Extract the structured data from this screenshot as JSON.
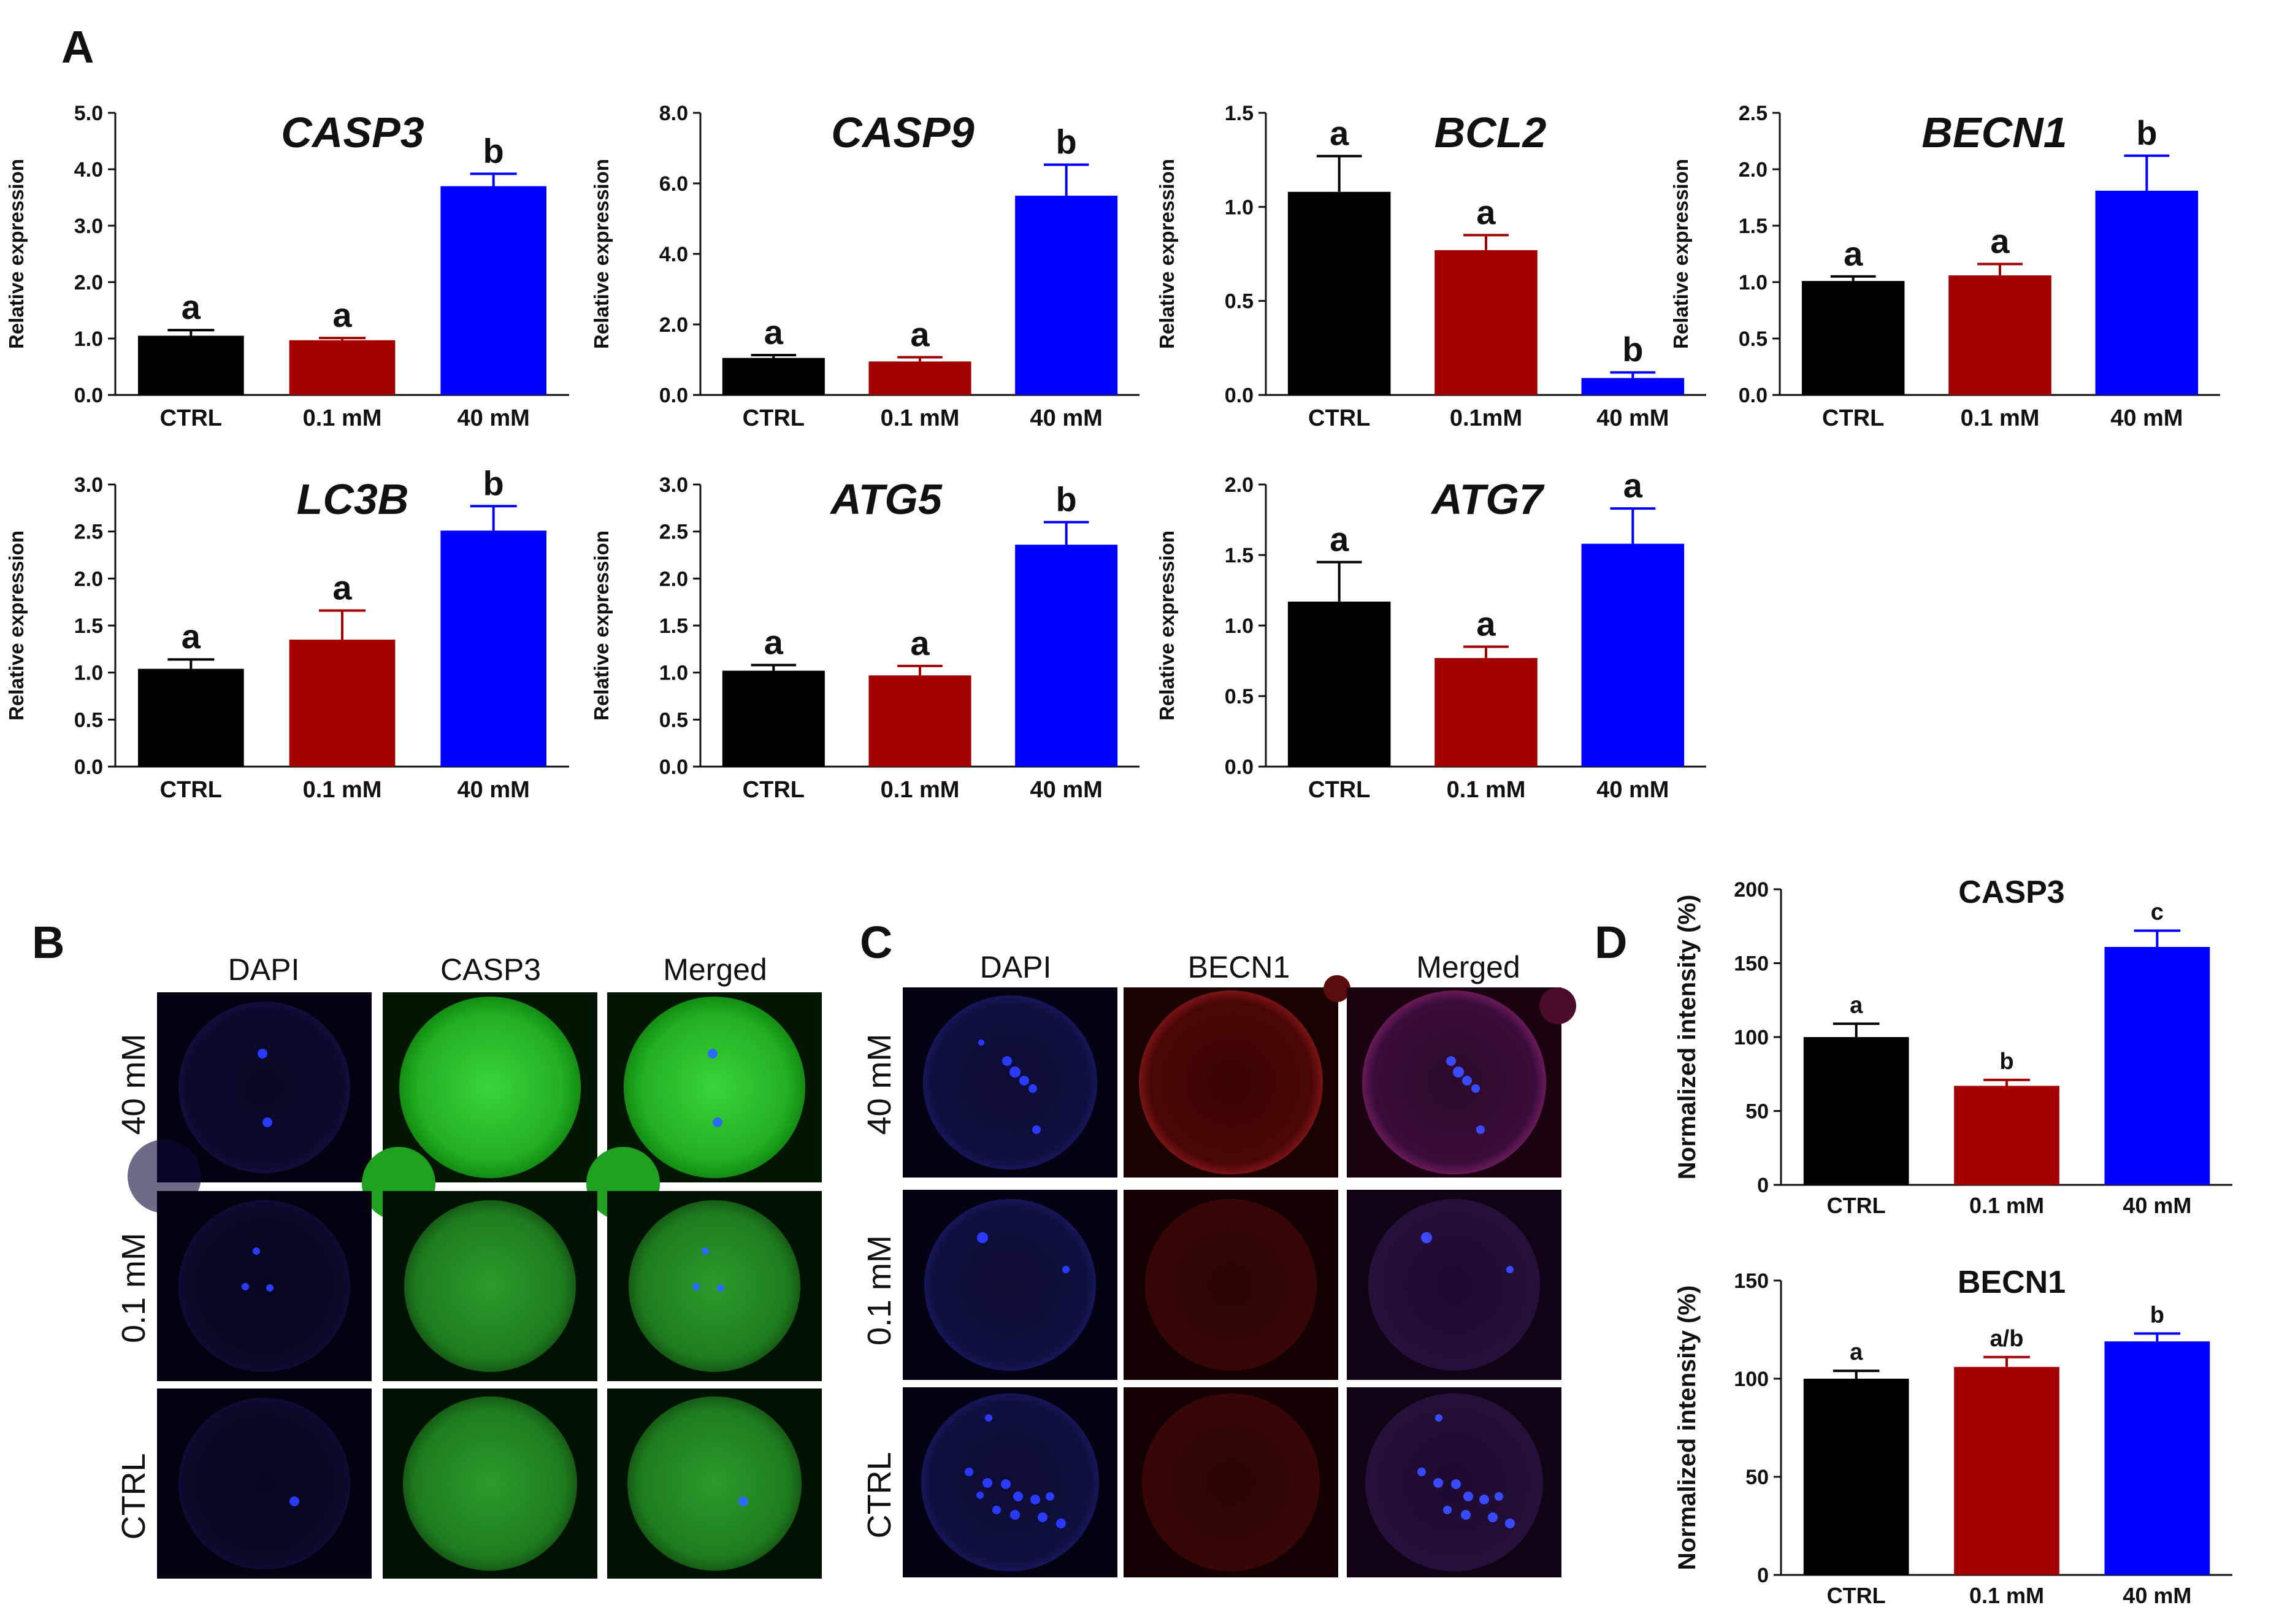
{
  "figure": {
    "panels": {
      "A": "A",
      "B": "B",
      "C": "C",
      "D": "D"
    }
  },
  "colors": {
    "CTRL": "#000000",
    "0.1 mM": "#a30000",
    "40 mM": "#0000ff"
  },
  "chart_data": [
    {
      "type": "bar",
      "panel": "A",
      "title": "CASP3",
      "ylabel": "Relative expression",
      "categories": [
        "CTRL",
        "0.1 mM",
        "40 mM"
      ],
      "values": [
        1.05,
        0.97,
        3.7
      ],
      "errors": [
        0.1,
        0.04,
        0.22
      ],
      "letters": [
        "a",
        "a",
        "b"
      ],
      "ylim": [
        0,
        5.0
      ],
      "ticks": [
        "0.0",
        "1.0",
        "2.0",
        "3.0",
        "4.0",
        "5.0"
      ]
    },
    {
      "type": "bar",
      "panel": "A",
      "title": "CASP9",
      "ylabel": "Relative expression",
      "categories": [
        "CTRL",
        "0.1 mM",
        "40 mM"
      ],
      "values": [
        1.05,
        0.95,
        5.65
      ],
      "errors": [
        0.08,
        0.12,
        0.88
      ],
      "letters": [
        "a",
        "a",
        "b"
      ],
      "ylim": [
        0,
        8.0
      ],
      "ticks": [
        "0.0",
        "2.0",
        "4.0",
        "6.0",
        "8.0"
      ]
    },
    {
      "type": "bar",
      "panel": "A",
      "title": "BCL2",
      "ylabel": "Relative expression",
      "categories": [
        "CTRL",
        "0.1mM",
        "40 mM"
      ],
      "values": [
        1.08,
        0.77,
        0.09
      ],
      "errors": [
        0.19,
        0.08,
        0.03
      ],
      "letters": [
        "a",
        "a",
        "b"
      ],
      "ylim": [
        0,
        1.5
      ],
      "ticks": [
        "0.0",
        "0.5",
        "1.0",
        "1.5"
      ]
    },
    {
      "type": "bar",
      "panel": "A",
      "title": "BECN1",
      "ylabel": "Relative expression",
      "categories": [
        "CTRL",
        "0.1 mM",
        "40 mM"
      ],
      "values": [
        1.01,
        1.06,
        1.81
      ],
      "errors": [
        0.04,
        0.1,
        0.31
      ],
      "letters": [
        "a",
        "a",
        "b"
      ],
      "ylim": [
        0,
        2.5
      ],
      "ticks": [
        "0.0",
        "0.5",
        "1.0",
        "1.5",
        "2.0",
        "2.5"
      ]
    },
    {
      "type": "bar",
      "panel": "A",
      "title": "LC3B",
      "ylabel": "Relative expression",
      "categories": [
        "CTRL",
        "0.1 mM",
        "40 mM"
      ],
      "values": [
        1.04,
        1.35,
        2.51
      ],
      "errors": [
        0.1,
        0.31,
        0.26
      ],
      "letters": [
        "a",
        "a",
        "b"
      ],
      "ylim": [
        0,
        3.0
      ],
      "ticks": [
        "0.0",
        "0.5",
        "1.0",
        "1.5",
        "2.0",
        "2.5",
        "3.0"
      ]
    },
    {
      "type": "bar",
      "panel": "A",
      "title": "ATG5",
      "ylabel": "Relative expression",
      "categories": [
        "CTRL",
        "0.1 mM",
        "40 mM"
      ],
      "values": [
        1.02,
        0.97,
        2.36
      ],
      "errors": [
        0.06,
        0.1,
        0.24
      ],
      "letters": [
        "a",
        "a",
        "b"
      ],
      "ylim": [
        0,
        3.0
      ],
      "ticks": [
        "0.0",
        "0.5",
        "1.0",
        "1.5",
        "2.0",
        "2.5",
        "3.0"
      ]
    },
    {
      "type": "bar",
      "panel": "A",
      "title": "ATG7",
      "ylabel": "Relative expression",
      "categories": [
        "CTRL",
        "0.1 mM",
        "40 mM"
      ],
      "values": [
        1.17,
        0.77,
        1.58
      ],
      "errors": [
        0.28,
        0.08,
        0.25
      ],
      "letters": [
        "a",
        "a",
        "a"
      ],
      "ylim": [
        0,
        2.0
      ],
      "ticks": [
        "0.0",
        "0.5",
        "1.0",
        "1.5",
        "2.0"
      ]
    },
    {
      "type": "bar",
      "panel": "D",
      "title": "CASP3",
      "ylabel": "Normalized intensity (%)",
      "categories": [
        "CTRL",
        "0.1 mM",
        "40 mM"
      ],
      "values": [
        100,
        67,
        161
      ],
      "errors": [
        9,
        4,
        11
      ],
      "letters": [
        "a",
        "b",
        "c"
      ],
      "ylim": [
        0,
        200
      ],
      "ticks": [
        "0",
        "50",
        "100",
        "150",
        "200"
      ]
    },
    {
      "type": "bar",
      "panel": "D",
      "title": "BECN1",
      "ylabel": "Normalized intensity (%)",
      "categories": [
        "CTRL",
        "0.1 mM",
        "40 mM"
      ],
      "values": [
        100,
        106,
        119
      ],
      "errors": [
        4,
        5,
        4
      ],
      "letters": [
        "a",
        "a/b",
        "b"
      ],
      "ylim": [
        0,
        150
      ],
      "ticks": [
        "0",
        "50",
        "100",
        "150"
      ]
    }
  ],
  "micrographs": {
    "B": {
      "columns": [
        "DAPI",
        "CASP3",
        "Merged"
      ],
      "rows": [
        "40 mM",
        "0.1 mM",
        "CTRL"
      ]
    },
    "C": {
      "columns": [
        "DAPI",
        "BECN1",
        "Merged"
      ],
      "rows": [
        "40 mM",
        "0.1 mM",
        "CTRL"
      ]
    }
  }
}
